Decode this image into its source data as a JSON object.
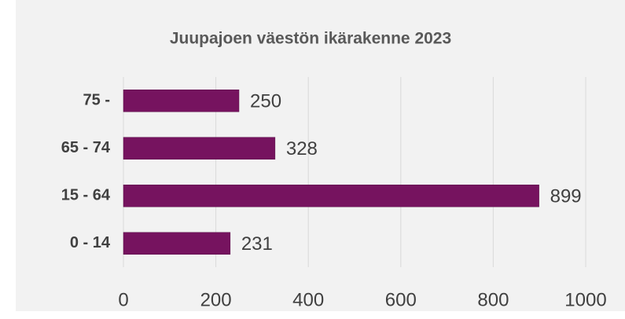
{
  "chart_data": {
    "type": "bar",
    "orientation": "horizontal",
    "title": "Juupajoen väestön ikärakenne 2023",
    "categories": [
      "75 -",
      "65 - 74",
      "15 - 64",
      "0 - 14"
    ],
    "values": [
      250,
      328,
      899,
      231
    ],
    "color": "#76135f",
    "xlim": [
      0,
      1000
    ],
    "xticks": [
      0,
      200,
      400,
      600,
      800,
      1000
    ],
    "grid": true
  }
}
